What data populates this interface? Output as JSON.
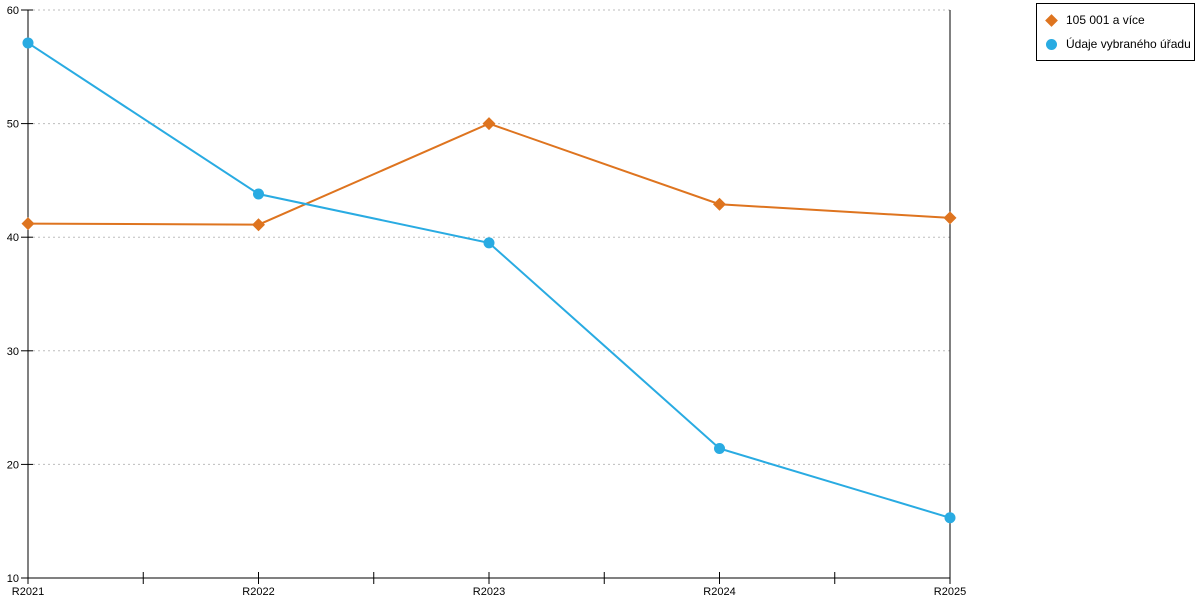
{
  "chart_data": {
    "type": "line",
    "categories": [
      "R2021",
      "R2022",
      "R2023",
      "R2024",
      "R2025"
    ],
    "series": [
      {
        "name": "105 001 a více",
        "marker": "diamond",
        "color": "#DE741F",
        "values": [
          41.2,
          41.1,
          50.0,
          42.9,
          41.7
        ]
      },
      {
        "name": "Údaje vybraného úřadu",
        "marker": "circle",
        "color": "#29ABE2",
        "values": [
          57.1,
          43.8,
          39.5,
          21.4,
          15.3
        ]
      }
    ],
    "ylim": [
      10,
      60
    ],
    "y_ticks": [
      10,
      20,
      30,
      40,
      50,
      60
    ],
    "grid": "horizontal-dotted",
    "legend_position": "top-right-outside",
    "axis_color": "#000000",
    "grid_color": "#bdbdbd"
  }
}
